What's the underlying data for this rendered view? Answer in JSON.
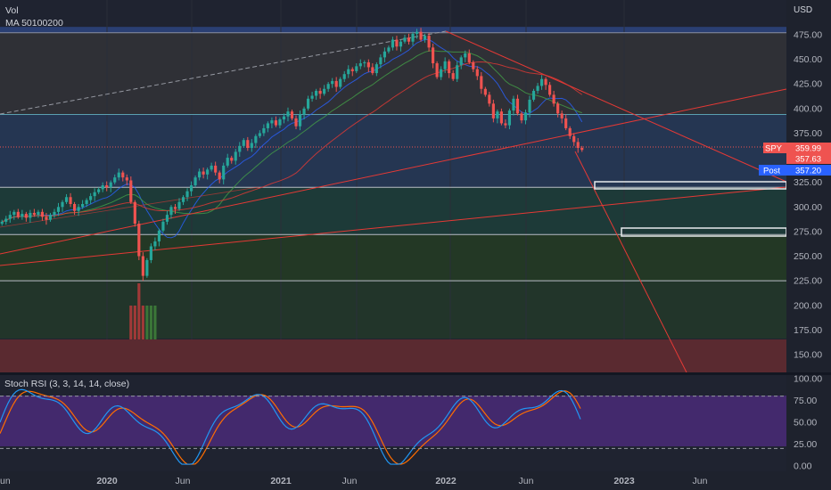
{
  "header": {
    "indicator_vol": "Vol",
    "indicator_ma": "MA 50100200"
  },
  "price_axis": {
    "unit": "USD",
    "ticks": [
      "475.00",
      "450.00",
      "425.00",
      "400.00",
      "375.00",
      "350.00",
      "325.00",
      "300.00",
      "275.00",
      "250.00",
      "225.00",
      "200.00",
      "175.00",
      "150.00"
    ],
    "tick_values": [
      475,
      450,
      425,
      400,
      375,
      350,
      325,
      300,
      275,
      250,
      225,
      200,
      175,
      150
    ]
  },
  "badges": {
    "symbol": "SPY",
    "last": "359.99",
    "close": "357.63",
    "post_label": "Post",
    "post_value": "357.20",
    "last_color": "#ef5350",
    "post_color": "#2962ff"
  },
  "stoch": {
    "label": "Stoch RSI (3, 3, 14, 14, close)",
    "ticks": [
      "100.00",
      "75.00",
      "50.00",
      "25.00",
      "0.00"
    ],
    "tick_values": [
      100,
      75,
      50,
      25,
      0
    ],
    "bands": [
      80,
      20
    ]
  },
  "time_axis": {
    "labels": [
      "un",
      "2020",
      "Jun",
      "2021",
      "Jun",
      "2022",
      "Jun",
      "2023",
      "Jun"
    ]
  },
  "chart_data": {
    "type": "candlestick",
    "symbol": "SPY",
    "ylim": [
      138,
      483
    ],
    "ohlc_hint": "weekly candles, approximated path of closes",
    "closes": [
      285,
      288,
      292,
      295,
      290,
      293,
      289,
      294,
      292,
      295,
      290,
      287,
      292,
      295,
      300,
      305,
      310,
      303,
      296,
      300,
      303,
      307,
      311,
      315,
      318,
      322,
      320,
      325,
      330,
      335,
      330,
      327,
      305,
      283,
      250,
      230,
      246,
      260,
      265,
      276,
      285,
      292,
      300,
      298,
      305,
      310,
      316,
      322,
      330,
      336,
      333,
      338,
      342,
      335,
      328,
      342,
      350,
      347,
      356,
      362,
      368,
      360,
      365,
      372,
      375,
      380,
      385,
      388,
      383,
      389,
      392,
      397,
      390,
      382,
      394,
      400,
      410,
      413,
      418,
      415,
      420,
      425,
      428,
      422,
      430,
      435,
      440,
      438,
      443,
      446,
      447,
      442,
      436,
      445,
      452,
      458,
      462,
      470,
      463,
      468,
      472,
      468,
      476,
      478,
      470,
      474,
      462,
      446,
      432,
      440,
      448,
      436,
      430,
      444,
      452,
      456,
      447,
      440,
      433,
      420,
      414,
      405,
      390,
      397,
      385,
      383,
      398,
      410,
      395,
      388,
      396,
      409,
      418,
      423,
      430,
      424,
      414,
      405,
      395,
      390,
      380,
      372,
      366,
      360,
      358
    ],
    "volume_hint": "volume bars drawn in lower band",
    "horizontal_levels": [
      477,
      394,
      320,
      272,
      225
    ],
    "zones": [
      {
        "from": 477,
        "to": 483,
        "color": "#2a3f73"
      },
      {
        "from": 394,
        "to": 477,
        "color": "#2f3036"
      },
      {
        "from": 320,
        "to": 394,
        "color": "#253652"
      },
      {
        "from": 272,
        "to": 320,
        "color": "#1d3a38"
      },
      {
        "from": 225,
        "to": 272,
        "color": "#233825"
      },
      {
        "from": 160,
        "to": 225,
        "color": "#22352a"
      }
    ],
    "boxes": [
      {
        "y_top": 325,
        "y_bottom": 318
      },
      {
        "y_top": 279,
        "y_bottom": 270
      }
    ],
    "series": [
      {
        "values": [],
        "color": "#2962ff"
      },
      {
        "values": [],
        "color": "#43a047"
      },
      {
        "values": [],
        "color": "#e53935"
      }
    ],
    "stoch_k": [],
    "stoch_d": []
  }
}
